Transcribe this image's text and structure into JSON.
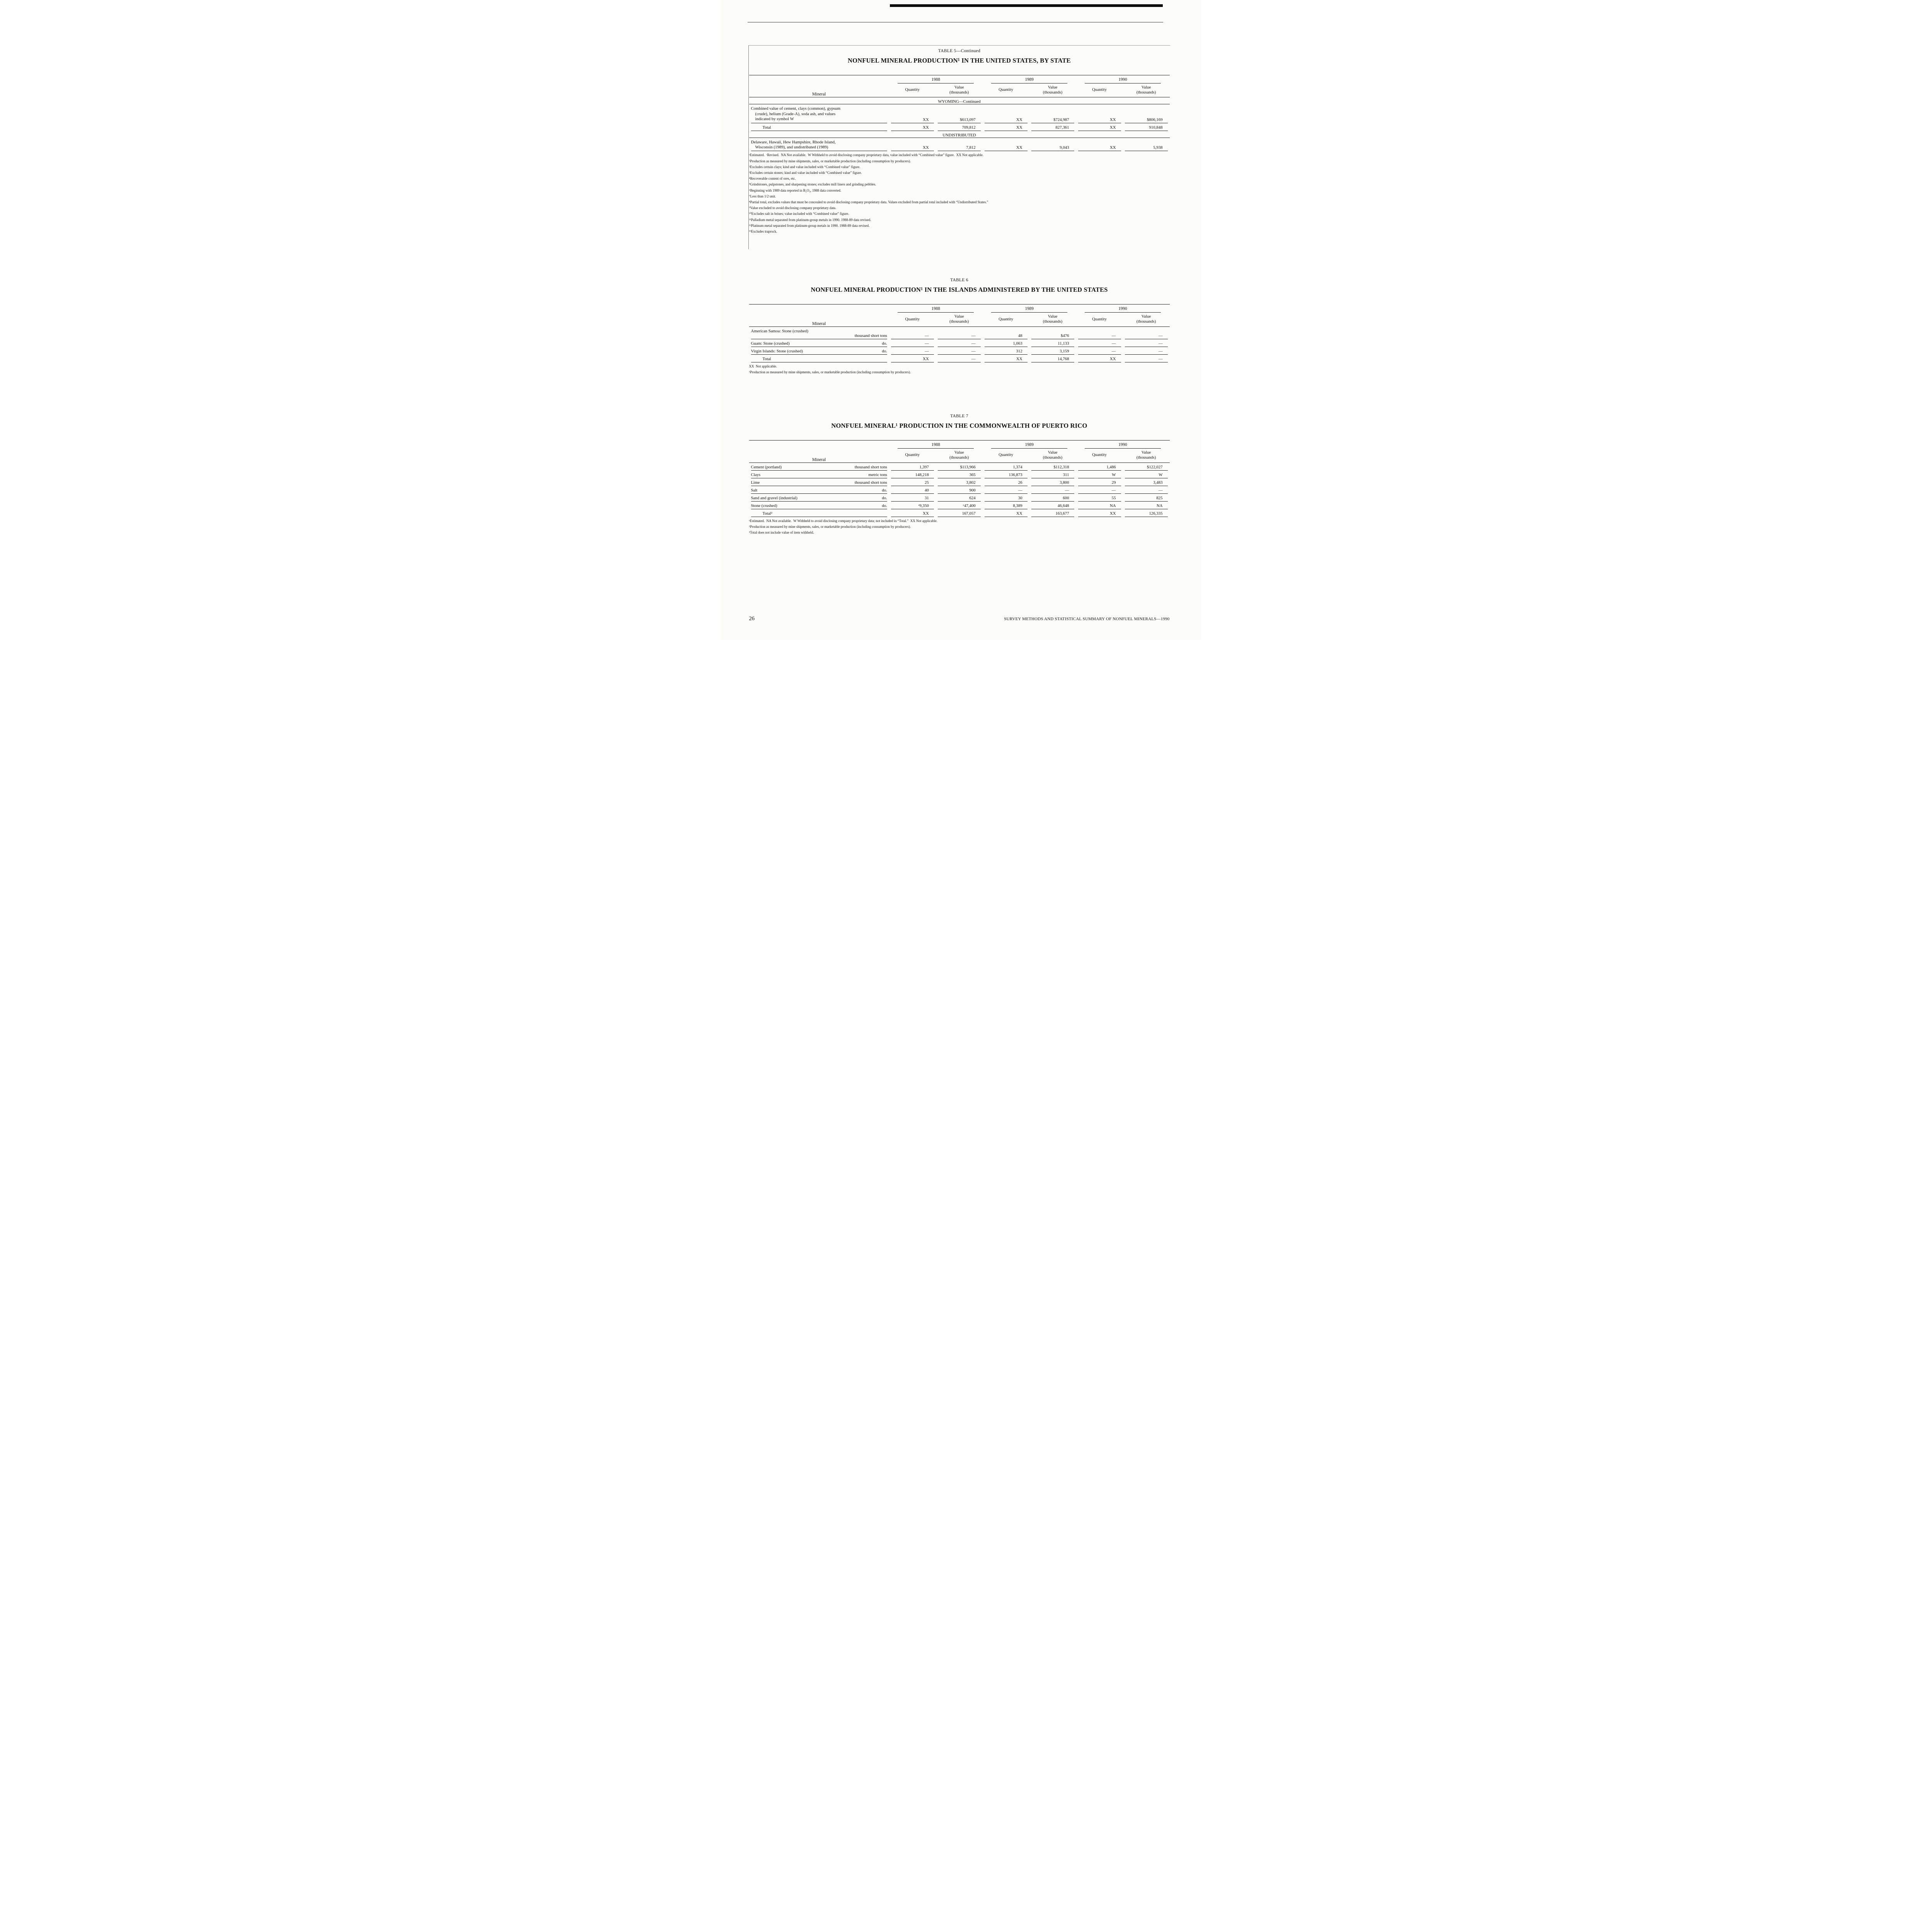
{
  "page": {
    "number": "26",
    "footer_text": "SURVEY METHODS AND STATISTICAL SUMMARY OF NONFUEL MINERALS—1990"
  },
  "common": {
    "mineral_header": "Mineral",
    "quantity_header": "Quantity",
    "value_header": "Value\n(thousands)",
    "years": {
      "y1988": "1988",
      "y1989": "1989",
      "y1990": "1990"
    }
  },
  "table5": {
    "label": "TABLE 5—Continued",
    "title": "NONFUEL MINERAL PRODUCTION¹ IN THE UNITED STATES, BY STATE",
    "section_wyoming": "WYOMING—Continued",
    "section_undistributed": "UNDISTRIBUTED",
    "rows": {
      "combined": {
        "mineral": "Combined value of cement, clays (common), gypsum\n(crude), helium (Grade-A), soda ash, and values\nindicated by symbol W",
        "q88": "XX",
        "v88": "$613,097",
        "q89": "XX",
        "v89": "$724,987",
        "q90": "XX",
        "v90": "$806,169"
      },
      "total": {
        "mineral": "Total",
        "q88": "XX",
        "v88": "709,812",
        "q89": "XX",
        "v89": "827,361",
        "q90": "XX",
        "v90": "910,848"
      },
      "undistributed": {
        "mineral": "Delaware, Hawaii, Hew Hampshire, Rhode Island,\nWisconsin (1989), and undistributed (1989)",
        "q88": "XX",
        "v88": "7,812",
        "q89": "XX",
        "v89": "9,043",
        "q90": "XX",
        "v90": "5,938"
      }
    },
    "footnotes": [
      "ᵉEstimated.  ʳRevised.  NA Not available.  W Withheld to avoid disclosing company proprietary data, value included with “Combined value” figure.  XX Not applicable.",
      "¹Production as measured by mine shipments, sales, or marketable production (including consumption by producers).",
      "²Excludes certain clays; kind and value included with “Combined value” figure.",
      "³Excludes certain stones; kind and value included with “Combined value” figure.",
      "⁴Recoverable content of ores, etc.",
      "⁵Grindstones, pulpstones, and sharpening stones; excludes mill liners and grinding pebbles.",
      "⁶Beginning with 1989 data reported in B₂O₃, 1988 data converted.",
      "⁷Less than 1/2 unit.",
      "⁸Partial total, excludes values that must be concealed to avoid disclosing company proprietary data. Values excluded from partial total included with “Undistributed States.”",
      "⁹Value excluded to avoid disclosing company proprietary data.",
      "¹⁰Excludes salt in brines; value included with “Combined value” figure.",
      "¹¹Palladium metal separated from platinum-group metals in 1990. 1988-89 data revised.",
      "¹²Platinum metal separated from platinum-group metals in 1990. 1988-89 data revised.",
      "¹³Excludes traprock."
    ]
  },
  "table6": {
    "label": "TABLE 6",
    "title": "NONFUEL MINERAL PRODUCTION¹ IN THE ISLANDS ADMINISTERED BY THE UNITED STATES",
    "rows": [
      {
        "mineral": "American Samoa: Stone (crushed)",
        "unit": "thousand short tons",
        "q88": "—",
        "v88": "—",
        "q89": "48",
        "v89": "$476",
        "q90": "—",
        "v90": "—"
      },
      {
        "mineral": "Guam: Stone (crushed)",
        "unit": "do.",
        "q88": "—",
        "v88": "—",
        "q89": "1,063",
        "v89": "11,133",
        "q90": "—",
        "v90": "—"
      },
      {
        "mineral": "Virgin Islands: Stone (crushed)",
        "unit": "do.",
        "q88": "—",
        "v88": "—",
        "q89": "312",
        "v89": "3,159",
        "q90": "—",
        "v90": "—"
      },
      {
        "mineral": "Total",
        "unit": "",
        "q88": "XX",
        "v88": "—",
        "q89": "XX",
        "v89": "14,768",
        "q90": "XX",
        "v90": "—"
      }
    ],
    "footnotes": [
      "XX  Not applicable.",
      "¹Production as measured by mine shipments, sales, or marketable production (including consumption by producers)."
    ]
  },
  "table7": {
    "label": "TABLE 7",
    "title": "NONFUEL MINERAL¹ PRODUCTION IN THE COMMONWEALTH OF PUERTO RICO",
    "rows": [
      {
        "mineral": "Cement (portland)",
        "unit": "thousand short tons",
        "q88": "1,397",
        "v88": "$113,966",
        "q89": "1,374",
        "v89": "$112,318",
        "q90": "1,486",
        "v90": "$122,027"
      },
      {
        "mineral": "Clays",
        "unit": "metric tons",
        "q88": "148,218",
        "v88": "365",
        "q89": "136,873",
        "v89": "311",
        "q90": "W",
        "v90": "W"
      },
      {
        "mineral": "Lime",
        "unit": "thousand short tons",
        "q88": "25",
        "v88": "3,802",
        "q89": "26",
        "v89": "3,800",
        "q90": "29",
        "v90": "3,483"
      },
      {
        "mineral": "Salt",
        "unit": "do.",
        "q88": "40",
        "v88": "900",
        "q89": "—",
        "v89": "—",
        "q90": "—",
        "v90": "—"
      },
      {
        "mineral": "Sand and gravel (industrial)",
        "unit": "do.",
        "q88": "31",
        "v88": "624",
        "q89": "30",
        "v89": "600",
        "q90": "55",
        "v90": "825"
      },
      {
        "mineral": "Stone (crushed)",
        "unit": "do.",
        "q88": "ᵉ9,350",
        "v88": "ᵉ47,400",
        "q89": "8,389",
        "v89": "46,648",
        "q90": "NA",
        "v90": "NA"
      },
      {
        "mineral": "Total²",
        "unit": "",
        "q88": "XX",
        "v88": "167,057",
        "q89": "XX",
        "v89": "163,677",
        "q90": "XX",
        "v90": "126,335"
      }
    ],
    "footnotes": [
      "ᵉEstimated.  NA Not available.  W Withheld to avoid disclosing company proprietary data; not included in “Total.”  XX Not applicable.",
      "¹Production as measured by mine shipments, sales, or marketable production (including consumption by producers).",
      "²Total does not include value of item withheld."
    ]
  }
}
